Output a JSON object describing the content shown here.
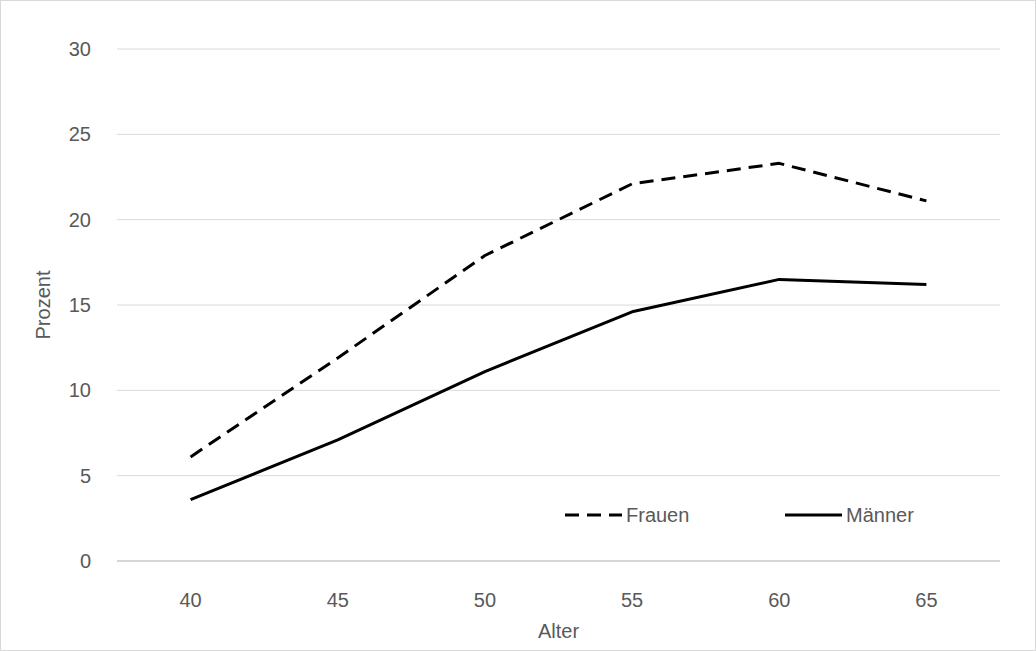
{
  "chart_data": {
    "type": "line",
    "x_label": "Alter",
    "y_label": "Prozent",
    "categories": [
      "40",
      "45",
      "50",
      "55",
      "60",
      "65"
    ],
    "series": [
      {
        "name": "Frauen",
        "color": "#000000",
        "line_style": "dashed",
        "values": [
          6.1,
          11.9,
          17.9,
          22.1,
          23.3,
          21.1
        ]
      },
      {
        "name": "Männer",
        "color": "#000000",
        "line_style": "solid",
        "values": [
          3.6,
          7.1,
          11.1,
          14.6,
          16.5,
          16.2
        ]
      }
    ],
    "ylim": [
      0,
      30
    ],
    "yticks": [
      0,
      5,
      10,
      15,
      20,
      25,
      30
    ],
    "grid": true,
    "legend": "lower-right"
  }
}
